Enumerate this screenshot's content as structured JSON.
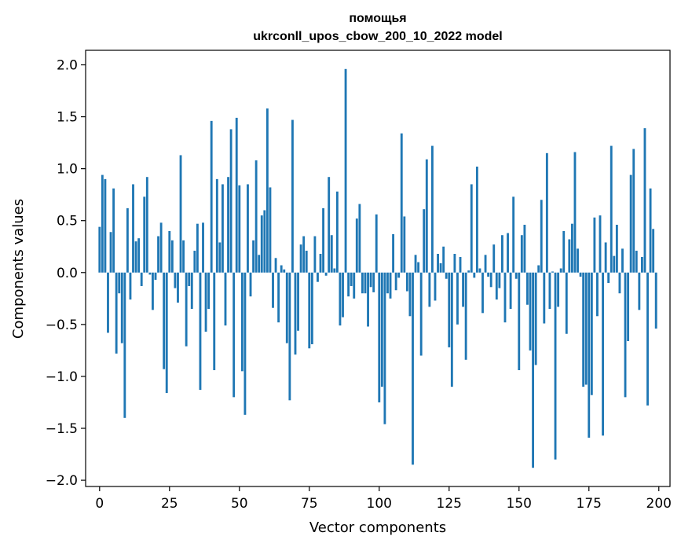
{
  "chart_data": {
    "type": "bar",
    "title": "помощья",
    "subtitle": "ukrconll_upos_cbow_200_10_2022 model",
    "xlabel": "Vector components",
    "ylabel": "Components values",
    "xlim": [
      -5,
      204
    ],
    "ylim": [
      -2.06,
      2.14
    ],
    "xticks": [
      0,
      25,
      50,
      75,
      100,
      125,
      150,
      175,
      200
    ],
    "yticks": [
      -2.0,
      -1.5,
      -1.0,
      -0.5,
      0.0,
      0.5,
      1.0,
      1.5,
      2.0
    ],
    "ytick_labels": [
      "−2.0",
      "−1.5",
      "−1.0",
      "−0.5",
      "0.0",
      "0.5",
      "1.0",
      "1.5",
      "2.0"
    ],
    "grid": false,
    "bar_color": "#1f77b4",
    "values": [
      0.44,
      0.94,
      0.9,
      -0.58,
      0.39,
      0.81,
      -0.78,
      -0.2,
      -0.68,
      -1.4,
      0.62,
      -0.26,
      0.85,
      0.3,
      0.33,
      -0.13,
      0.73,
      0.92,
      -0.02,
      -0.36,
      -0.07,
      0.35,
      0.48,
      -0.93,
      -1.16,
      0.4,
      0.31,
      -0.15,
      -0.29,
      1.13,
      0.31,
      -0.71,
      -0.13,
      -0.35,
      0.21,
      0.47,
      -1.13,
      0.48,
      -0.57,
      -0.35,
      1.46,
      -0.94,
      0.9,
      0.29,
      0.85,
      -0.51,
      0.92,
      1.38,
      -1.2,
      1.49,
      0.84,
      -0.95,
      -1.37,
      0.85,
      -0.23,
      0.31,
      1.08,
      0.17,
      0.55,
      0.6,
      1.58,
      0.82,
      -0.34,
      0.14,
      -0.48,
      0.07,
      0.03,
      -0.68,
      -1.23,
      1.47,
      -0.79,
      -0.56,
      0.27,
      0.35,
      0.21,
      -0.73,
      -0.69,
      0.35,
      -0.09,
      0.18,
      0.62,
      -0.03,
      0.92,
      0.36,
      0.04,
      0.78,
      -0.51,
      -0.43,
      1.96,
      -0.23,
      -0.13,
      -0.25,
      0.52,
      0.66,
      -0.2,
      -0.2,
      -0.52,
      -0.14,
      -0.19,
      0.56,
      -1.25,
      -1.1,
      -1.46,
      -0.2,
      -0.25,
      0.37,
      -0.17,
      -0.05,
      1.34,
      0.54,
      -0.18,
      -0.42,
      -1.85,
      0.17,
      0.1,
      -0.8,
      0.61,
      1.09,
      -0.33,
      1.22,
      -0.27,
      0.18,
      0.09,
      0.25,
      -0.06,
      -0.72,
      -1.1,
      0.18,
      -0.5,
      0.15,
      -0.33,
      -0.84,
      0.02,
      0.85,
      -0.05,
      1.02,
      0.04,
      -0.39,
      0.17,
      -0.04,
      -0.14,
      0.27,
      -0.26,
      -0.15,
      0.36,
      -0.48,
      0.38,
      -0.35,
      0.73,
      -0.06,
      -0.94,
      0.36,
      0.46,
      -0.31,
      -0.75,
      -1.88,
      -0.89,
      0.07,
      0.7,
      -0.49,
      1.15,
      -0.35,
      0.01,
      -1.8,
      -0.33,
      0.04,
      0.4,
      -0.59,
      0.32,
      0.47,
      1.16,
      0.23,
      -0.04,
      -1.1,
      -1.08,
      -1.59,
      -1.18,
      0.53,
      -0.42,
      0.55,
      -1.57,
      0.29,
      -0.1,
      1.22,
      0.16,
      0.46,
      -0.2,
      0.23,
      -1.2,
      -0.66,
      0.94,
      1.19,
      0.21,
      -0.36,
      0.15,
      1.39,
      -1.28,
      0.81,
      0.42,
      -0.54
    ]
  }
}
